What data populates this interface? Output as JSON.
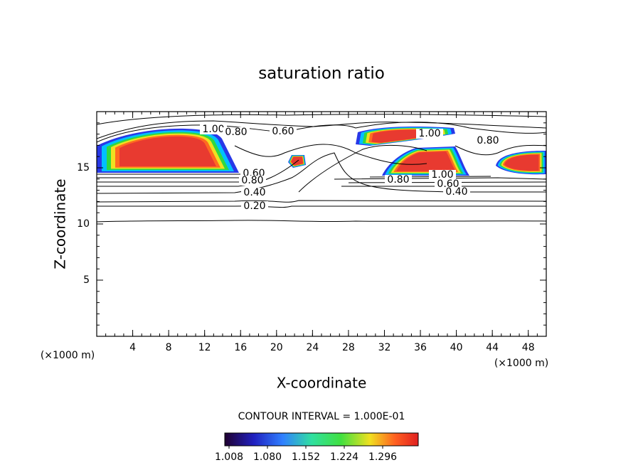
{
  "chart_data": {
    "type": "contour",
    "title": "saturation ratio",
    "xlabel": "X-coordinate",
    "ylabel": "Z-coordinate",
    "x_unit": "(×1000 m)",
    "xlim": [
      0,
      50
    ],
    "ylim": [
      0,
      20
    ],
    "xticks": [
      4,
      8,
      12,
      16,
      20,
      24,
      28,
      32,
      36,
      40,
      44,
      48
    ],
    "yticks": [
      5,
      10,
      15
    ],
    "contour_labels": [
      {
        "value": 1.0,
        "label": "1.00"
      },
      {
        "value": 0.8,
        "label": "0.80"
      },
      {
        "value": 0.6,
        "label": "0.60"
      },
      {
        "value": 0.6,
        "label": "0.60"
      },
      {
        "value": 0.8,
        "label": "0.80"
      },
      {
        "value": 0.4,
        "label": "0.40"
      },
      {
        "value": 0.2,
        "label": "0.20"
      },
      {
        "value": 0.8,
        "label": "0.80"
      },
      {
        "value": 1.0,
        "label": "1.00"
      },
      {
        "value": 0.6,
        "label": "0.60"
      },
      {
        "value": 0.4,
        "label": "0.40"
      },
      {
        "value": 1.0,
        "label": "1.00"
      },
      {
        "value": 0.8,
        "label": "0.80"
      }
    ],
    "contour_interval": "CONTOUR INTERVAL = 1.000E-01",
    "colorbar_ticks": [
      {
        "value": 1.008,
        "label": "1.008"
      },
      {
        "value": 1.08,
        "label": "1.080"
      },
      {
        "value": 1.152,
        "label": "1.152"
      },
      {
        "value": 1.224,
        "label": "1.224"
      },
      {
        "value": 1.296,
        "label": "1.296"
      }
    ]
  }
}
